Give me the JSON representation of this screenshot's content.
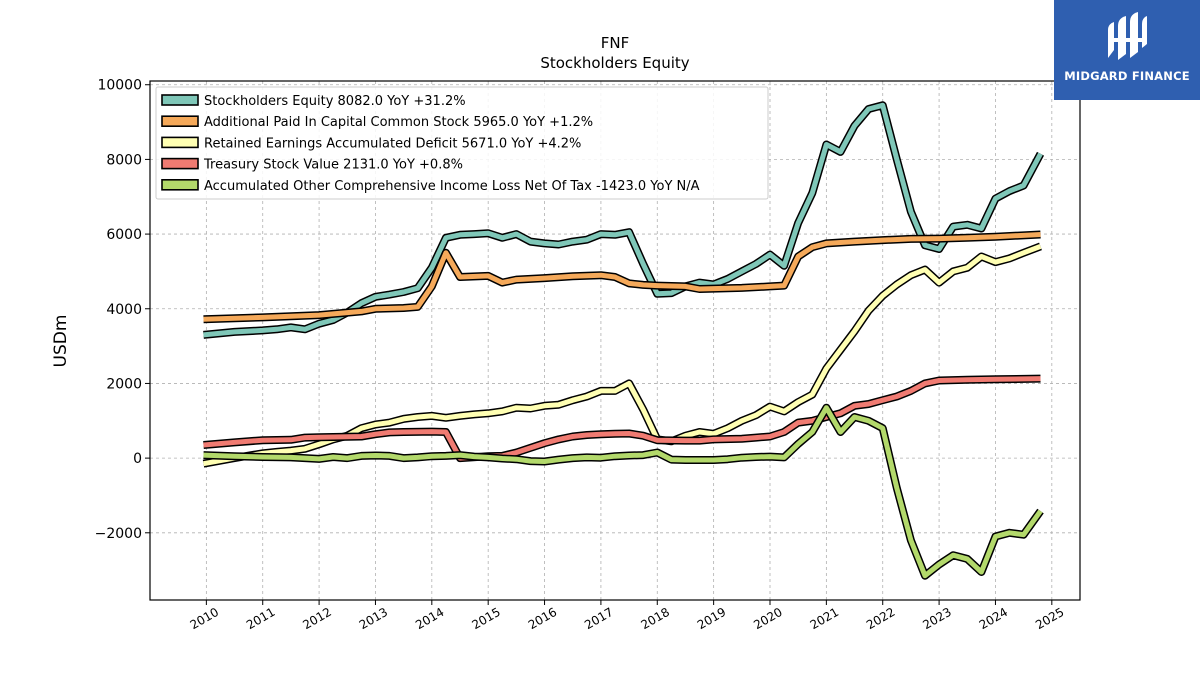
{
  "chart_data": {
    "type": "line",
    "title": "FNF",
    "subtitle": "Stockholders  Equity",
    "ylabel": "USDm",
    "xlabel": "",
    "ylim": [
      -3800,
      10100
    ],
    "xlim": [
      2009.0,
      2025.5
    ],
    "yticks": [
      -2000,
      0,
      2000,
      4000,
      6000,
      8000,
      10000
    ],
    "yticklabels": [
      "−2000",
      "0",
      "2000",
      "4000",
      "6000",
      "8000",
      "10000"
    ],
    "xticks": [
      2010,
      2011,
      2012,
      2013,
      2014,
      2015,
      2016,
      2017,
      2018,
      2019,
      2020,
      2021,
      2022,
      2023,
      2024,
      2025
    ],
    "xticklabels": [
      "2010",
      "2011",
      "2012",
      "2013",
      "2014",
      "2015",
      "2016",
      "2017",
      "2018",
      "2019",
      "2020",
      "2021",
      "2022",
      "2023",
      "2024",
      "2025"
    ],
    "grid": true,
    "legend_position": "top-left",
    "series": [
      {
        "name": "Stockholders Equity  8082.0 YoY +31.2%",
        "color": "#7fc7b8",
        "x": [
          2009.95,
          2010.5,
          2011.0,
          2011.25,
          2011.5,
          2011.75,
          2012.0,
          2012.25,
          2012.5,
          2012.75,
          2013.0,
          2013.25,
          2013.5,
          2013.75,
          2014.0,
          2014.25,
          2014.5,
          2014.75,
          2015.0,
          2015.25,
          2015.5,
          2015.75,
          2016.0,
          2016.25,
          2016.5,
          2016.75,
          2017.0,
          2017.25,
          2017.5,
          2017.75,
          2018.0,
          2018.25,
          2018.5,
          2018.75,
          2019.0,
          2019.25,
          2019.5,
          2019.75,
          2020.0,
          2020.25,
          2020.5,
          2020.75,
          2021.0,
          2021.25,
          2021.5,
          2021.75,
          2022.0,
          2022.25,
          2022.5,
          2022.75,
          2023.0,
          2023.25,
          2023.5,
          2023.75,
          2024.0,
          2024.25,
          2024.5,
          2024.8
        ],
        "values": [
          3300,
          3380,
          3420,
          3450,
          3500,
          3450,
          3600,
          3700,
          3900,
          4150,
          4320,
          4380,
          4450,
          4550,
          5100,
          5900,
          5980,
          6000,
          6020,
          5900,
          6000,
          5800,
          5750,
          5720,
          5800,
          5850,
          6000,
          5980,
          6050,
          5200,
          4400,
          4420,
          4600,
          4700,
          4650,
          4800,
          5000,
          5200,
          5450,
          5150,
          6300,
          7100,
          8400,
          8200,
          8900,
          9350,
          9450,
          8000,
          6600,
          5700,
          5600,
          6200,
          6250,
          6150,
          6950,
          7150,
          7300,
          8150
        ]
      },
      {
        "name": "Additional Paid In Capital Common Stock  5965.0 YoY +1.2%",
        "color": "#f5a95a",
        "x": [
          2009.95,
          2011.0,
          2012.0,
          2012.75,
          2013.0,
          2013.5,
          2013.75,
          2014.0,
          2014.25,
          2014.5,
          2015.0,
          2015.25,
          2015.5,
          2016.0,
          2016.5,
          2017.0,
          2017.25,
          2017.5,
          2017.75,
          2018.0,
          2018.5,
          2018.75,
          2019.0,
          2019.5,
          2020.0,
          2020.25,
          2020.5,
          2020.75,
          2021.0,
          2021.5,
          2022.0,
          2022.5,
          2023.0,
          2023.5,
          2024.0,
          2024.8
        ],
        "values": [
          3720,
          3770,
          3830,
          3930,
          4000,
          4020,
          4050,
          4600,
          5500,
          4850,
          4880,
          4700,
          4780,
          4820,
          4870,
          4900,
          4850,
          4680,
          4640,
          4620,
          4600,
          4530,
          4540,
          4560,
          4600,
          4620,
          5400,
          5650,
          5750,
          5800,
          5840,
          5870,
          5880,
          5900,
          5930,
          5990
        ]
      },
      {
        "name": "Retained Earnings Accumulated Deficit  5671.0 YoY +4.2%",
        "color": "#ffffb3",
        "x": [
          2009.95,
          2010.5,
          2011.0,
          2011.25,
          2011.5,
          2011.75,
          2012.0,
          2012.25,
          2012.5,
          2012.75,
          2013.0,
          2013.25,
          2013.5,
          2013.75,
          2014.0,
          2014.25,
          2014.5,
          2014.75,
          2015.0,
          2015.25,
          2015.5,
          2015.75,
          2016.0,
          2016.25,
          2016.5,
          2016.75,
          2017.0,
          2017.25,
          2017.5,
          2017.75,
          2018.0,
          2018.25,
          2018.5,
          2018.75,
          2019.0,
          2019.25,
          2019.5,
          2019.75,
          2020.0,
          2020.25,
          2020.5,
          2020.75,
          2021.0,
          2021.25,
          2021.5,
          2021.75,
          2022.0,
          2022.25,
          2022.5,
          2022.75,
          2023.0,
          2023.25,
          2023.5,
          2023.75,
          2024.0,
          2024.25,
          2024.5,
          2024.8
        ],
        "values": [
          -150,
          0,
          130,
          170,
          200,
          250,
          370,
          500,
          600,
          800,
          900,
          950,
          1050,
          1100,
          1130,
          1080,
          1130,
          1170,
          1200,
          1250,
          1350,
          1330,
          1400,
          1430,
          1550,
          1650,
          1800,
          1800,
          2000,
          1300,
          500,
          450,
          600,
          700,
          650,
          800,
          1000,
          1150,
          1380,
          1250,
          1500,
          1700,
          2400,
          2900,
          3400,
          3950,
          4350,
          4650,
          4900,
          5050,
          4700,
          5000,
          5100,
          5400,
          5250,
          5350,
          5500,
          5670
        ]
      },
      {
        "name": "Treasury Stock Value  2131.0 YoY +0.8%",
        "color": "#f07b72",
        "x": [
          2009.95,
          2010.5,
          2011.0,
          2011.5,
          2011.75,
          2012.0,
          2012.5,
          2012.75,
          2013.0,
          2013.25,
          2013.5,
          2014.0,
          2014.25,
          2014.5,
          2015.0,
          2015.25,
          2015.5,
          2016.0,
          2016.25,
          2016.5,
          2016.75,
          2017.0,
          2017.25,
          2017.5,
          2017.75,
          2018.0,
          2018.5,
          2018.75,
          2019.0,
          2019.5,
          2019.75,
          2020.0,
          2020.25,
          2020.5,
          2020.75,
          2021.0,
          2021.25,
          2021.5,
          2021.75,
          2022.0,
          2022.25,
          2022.5,
          2022.75,
          2023.0,
          2023.5,
          2024.0,
          2024.8
        ],
        "values": [
          350,
          420,
          480,
          490,
          550,
          560,
          570,
          580,
          640,
          690,
          700,
          710,
          700,
          0,
          50,
          60,
          150,
          400,
          500,
          580,
          620,
          640,
          650,
          660,
          600,
          480,
          470,
          470,
          500,
          520,
          550,
          580,
          700,
          950,
          1000,
          1100,
          1200,
          1400,
          1450,
          1550,
          1650,
          1800,
          2000,
          2080,
          2100,
          2110,
          2130
        ]
      },
      {
        "name": "Accumulated Other Comprehensive Income Loss Net Of Tax  -1423.0 YoY N/A",
        "color": "#b3d96b",
        "x": [
          2009.95,
          2010.5,
          2011.0,
          2011.5,
          2012.0,
          2012.25,
          2012.5,
          2012.75,
          2013.0,
          2013.25,
          2013.5,
          2013.75,
          2014.0,
          2014.25,
          2014.5,
          2014.75,
          2015.0,
          2015.25,
          2015.5,
          2015.75,
          2016.0,
          2016.25,
          2016.5,
          2016.75,
          2017.0,
          2017.25,
          2017.5,
          2017.75,
          2018.0,
          2018.25,
          2018.5,
          2018.75,
          2019.0,
          2019.25,
          2019.5,
          2019.75,
          2020.0,
          2020.25,
          2020.5,
          2020.75,
          2021.0,
          2021.25,
          2021.5,
          2021.75,
          2022.0,
          2022.25,
          2022.5,
          2022.75,
          2023.0,
          2023.25,
          2023.5,
          2023.75,
          2024.0,
          2024.25,
          2024.5,
          2024.8
        ],
        "values": [
          80,
          50,
          30,
          20,
          -20,
          30,
          0,
          60,
          70,
          60,
          0,
          20,
          50,
          60,
          80,
          40,
          20,
          -10,
          -30,
          -80,
          -90,
          -40,
          0,
          20,
          10,
          50,
          70,
          80,
          150,
          -40,
          -50,
          -50,
          -50,
          -30,
          10,
          30,
          40,
          20,
          380,
          700,
          1350,
          700,
          1100,
          1000,
          800,
          -800,
          -2200,
          -3150,
          -2850,
          -2600,
          -2700,
          -3050,
          -2100,
          -2000,
          -2050,
          -1420
        ]
      }
    ]
  },
  "logo": {
    "text": "MIDGARD FINANCE",
    "color": "#2f5fb0"
  }
}
